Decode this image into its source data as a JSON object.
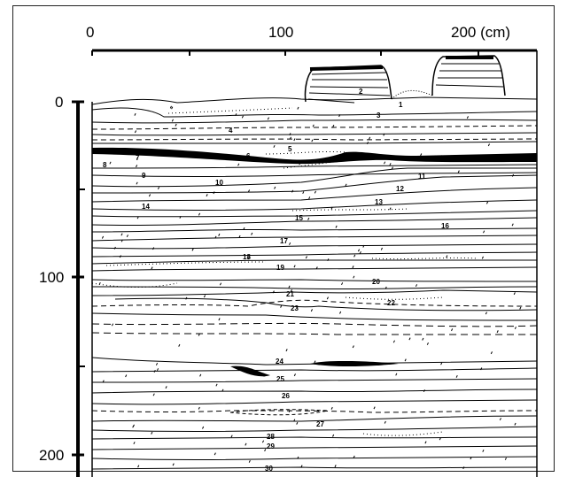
{
  "top_axis": {
    "ticks": [
      "0",
      "100",
      "200 (cm)"
    ]
  },
  "left_axis": {
    "ticks": [
      "0",
      "100",
      "200"
    ]
  },
  "layers": [
    "1",
    "2",
    "3",
    "4",
    "5",
    "6",
    "7",
    "8",
    "9",
    "10",
    "11",
    "12",
    "13",
    "14",
    "15",
    "16",
    "17",
    "18",
    "19",
    "20",
    "21",
    "22",
    "23",
    "24",
    "25",
    "26",
    "27",
    "28",
    "29",
    "30"
  ]
}
